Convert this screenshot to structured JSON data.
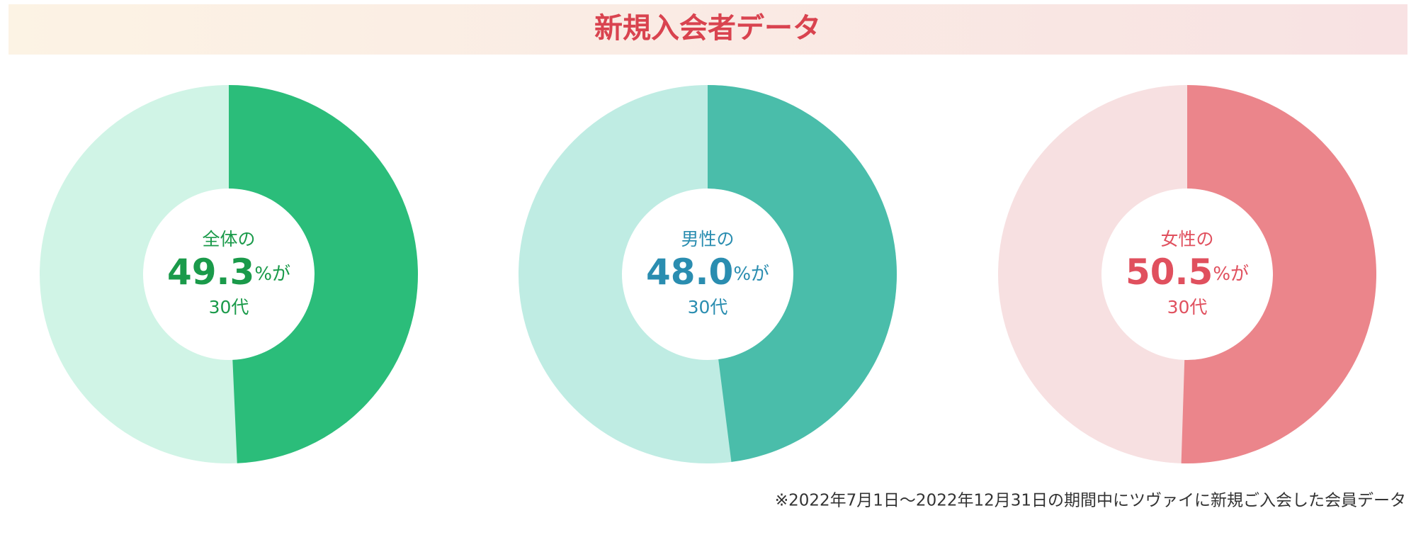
{
  "header": {
    "title": "新規入会者データ"
  },
  "chart_data": [
    {
      "type": "donut",
      "label": "全体の",
      "values": [
        49.3
      ],
      "value_labels": [
        "49.3"
      ],
      "unit": "%が",
      "caption": "30代",
      "color": "#2bbd7a",
      "track_color": "#d0f4e6",
      "text_color": "#1a9a4a"
    },
    {
      "type": "donut",
      "label": "男性の",
      "values": [
        48.0
      ],
      "value_labels": [
        "48.0"
      ],
      "unit": "%が",
      "caption": "30代",
      "color": "#4abdaa",
      "track_color": "#bfece3",
      "text_color": "#2a8db0"
    },
    {
      "type": "donut",
      "label": "女性の",
      "values": [
        50.5
      ],
      "value_labels": [
        "50.5"
      ],
      "unit": "%が",
      "caption": "30代",
      "color": "#eb858b",
      "track_color": "#f7e0e1",
      "text_color": "#e0505e"
    }
  ],
  "footnote": "※2022年7月1日〜2022年12月31日の期間中にツヴァイに新規ご入会した会員データ"
}
